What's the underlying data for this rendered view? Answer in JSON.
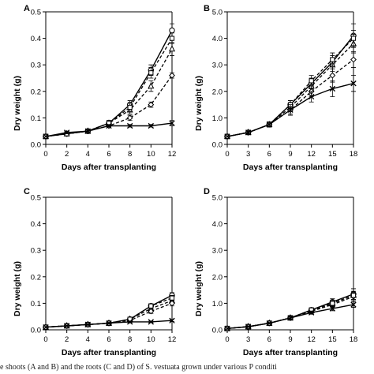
{
  "caption": "e shoots (A and B) and the roots (C and D) of S. vestuata grown under various P conditi",
  "chart_data": [
    {
      "panel": "A",
      "type": "line",
      "xlabel": "Days after transplanting",
      "ylabel": "Dry weight (g)",
      "xlim": [
        0,
        12
      ],
      "ylim": [
        0,
        0.5
      ],
      "xticks": [
        0,
        2,
        4,
        6,
        8,
        10,
        12
      ],
      "yticks": [
        0.0,
        0.1,
        0.2,
        0.3,
        0.4,
        0.5
      ],
      "ytick_labels": [
        "0.0",
        "0.1",
        "0.2",
        "0.3",
        "0.4",
        "0.5"
      ],
      "x": [
        0,
        2,
        4,
        6,
        8,
        10,
        12
      ],
      "series": [
        {
          "marker": "circle",
          "dash": "solid",
          "values": [
            0.03,
            0.04,
            0.05,
            0.08,
            0.15,
            0.28,
            0.43
          ],
          "err": [
            0,
            0.005,
            0.005,
            0.01,
            0.015,
            0.02,
            0.025
          ]
        },
        {
          "marker": "triangle",
          "dash": "dashed",
          "values": [
            0.03,
            0.04,
            0.05,
            0.08,
            0.13,
            0.22,
            0.36
          ],
          "err": [
            0,
            0.005,
            0.005,
            0.01,
            0.015,
            0.02,
            0.025
          ]
        },
        {
          "marker": "diamond",
          "dash": "dashed",
          "values": [
            0.03,
            0.04,
            0.05,
            0.07,
            0.1,
            0.15,
            0.26
          ],
          "err": [
            0,
            0.005,
            0.005,
            0.005,
            0.01,
            0.01,
            0.01
          ]
        },
        {
          "marker": "square",
          "dash": "dashed",
          "values": [
            0.03,
            0.04,
            0.05,
            0.08,
            0.14,
            0.27,
            0.4
          ],
          "err": [
            0,
            0.005,
            0.005,
            0.01,
            0.015,
            0.02,
            0.02
          ]
        },
        {
          "marker": "x",
          "dash": "solid",
          "values": [
            0.03,
            0.045,
            0.05,
            0.07,
            0.07,
            0.07,
            0.08
          ],
          "err": [
            0,
            0.005,
            0.005,
            0.005,
            0.005,
            0.005,
            0.01
          ]
        }
      ]
    },
    {
      "panel": "B",
      "type": "line",
      "xlabel": "Days after transplanting",
      "ylabel": "Dry weight (g)",
      "xlim": [
        0,
        18
      ],
      "ylim": [
        0,
        5.0
      ],
      "xticks": [
        0,
        3,
        6,
        9,
        12,
        15,
        18
      ],
      "yticks": [
        0.0,
        1.0,
        2.0,
        3.0,
        4.0,
        5.0
      ],
      "ytick_labels": [
        "0.0",
        "1.0",
        "2.0",
        "3.0",
        "4.0",
        "5.0"
      ],
      "x": [
        0,
        3,
        6,
        9,
        12,
        15,
        18
      ],
      "series": [
        {
          "marker": "circle",
          "dash": "solid",
          "values": [
            0.3,
            0.45,
            0.75,
            1.5,
            2.3,
            3.1,
            4.1
          ],
          "err": [
            0,
            0.05,
            0.1,
            0.15,
            0.2,
            0.25,
            0.45
          ]
        },
        {
          "marker": "triangle",
          "dash": "dashed",
          "values": [
            0.3,
            0.45,
            0.75,
            1.4,
            2.2,
            3.0,
            3.8
          ],
          "err": [
            0,
            0.05,
            0.1,
            0.15,
            0.2,
            0.25,
            0.35
          ]
        },
        {
          "marker": "diamond",
          "dash": "dashed",
          "values": [
            0.3,
            0.45,
            0.75,
            1.3,
            2.0,
            2.6,
            3.2
          ],
          "err": [
            0,
            0.05,
            0.1,
            0.15,
            0.2,
            0.25,
            0.3
          ]
        },
        {
          "marker": "square",
          "dash": "dashed",
          "values": [
            0.3,
            0.45,
            0.75,
            1.5,
            2.4,
            3.2,
            4.0
          ],
          "err": [
            0,
            0.05,
            0.1,
            0.15,
            0.2,
            0.25,
            0.3
          ]
        },
        {
          "marker": "x",
          "dash": "solid",
          "values": [
            0.3,
            0.45,
            0.75,
            1.3,
            1.8,
            2.1,
            2.3
          ],
          "err": [
            0,
            0.05,
            0.1,
            0.2,
            0.2,
            0.3,
            0.3
          ]
        }
      ]
    },
    {
      "panel": "C",
      "type": "line",
      "xlabel": "Days after transplanting",
      "ylabel": "Dry weight (g)",
      "xlim": [
        0,
        12
      ],
      "ylim": [
        0,
        0.5
      ],
      "xticks": [
        0,
        2,
        4,
        6,
        8,
        10,
        12
      ],
      "yticks": [
        0.0,
        0.1,
        0.2,
        0.3,
        0.4,
        0.5
      ],
      "ytick_labels": [
        "0.0",
        "0.1",
        "0.2",
        "0.3",
        "0.4",
        "0.5"
      ],
      "x": [
        0,
        2,
        4,
        6,
        8,
        10,
        12
      ],
      "series": [
        {
          "marker": "circle",
          "dash": "solid",
          "values": [
            0.01,
            0.015,
            0.02,
            0.025,
            0.04,
            0.09,
            0.13
          ],
          "err": [
            0,
            0,
            0.003,
            0.004,
            0.005,
            0.008,
            0.01
          ]
        },
        {
          "marker": "triangle",
          "dash": "dashed",
          "values": [
            0.01,
            0.015,
            0.02,
            0.025,
            0.04,
            0.08,
            0.11
          ],
          "err": [
            0,
            0,
            0.003,
            0.004,
            0.005,
            0.008,
            0.01
          ]
        },
        {
          "marker": "diamond",
          "dash": "dashed",
          "values": [
            0.01,
            0.015,
            0.02,
            0.025,
            0.035,
            0.07,
            0.1
          ],
          "err": [
            0,
            0,
            0.003,
            0.004,
            0.005,
            0.008,
            0.01
          ]
        },
        {
          "marker": "square",
          "dash": "dashed",
          "values": [
            0.01,
            0.015,
            0.02,
            0.025,
            0.04,
            0.09,
            0.12
          ],
          "err": [
            0,
            0,
            0.003,
            0.004,
            0.005,
            0.008,
            0.01
          ]
        },
        {
          "marker": "x",
          "dash": "solid",
          "values": [
            0.01,
            0.015,
            0.02,
            0.025,
            0.03,
            0.03,
            0.035
          ],
          "err": [
            0,
            0,
            0.002,
            0.003,
            0.003,
            0.003,
            0.004
          ]
        }
      ]
    },
    {
      "panel": "D",
      "type": "line",
      "xlabel": "Days after transplanting",
      "ylabel": "Dry weight (g)",
      "xlim": [
        0,
        18
      ],
      "ylim": [
        0,
        5.0
      ],
      "xticks": [
        0,
        3,
        6,
        9,
        12,
        15,
        18
      ],
      "yticks": [
        0.0,
        1.0,
        2.0,
        3.0,
        4.0,
        5.0
      ],
      "ytick_labels": [
        "0.0",
        "1.0",
        "2.0",
        "3.0",
        "4.0",
        "5.0"
      ],
      "x": [
        0,
        3,
        6,
        9,
        12,
        15,
        18
      ],
      "series": [
        {
          "marker": "circle",
          "dash": "solid",
          "values": [
            0.05,
            0.12,
            0.25,
            0.45,
            0.75,
            1.05,
            1.35
          ],
          "err": [
            0,
            0.02,
            0.03,
            0.05,
            0.08,
            0.12,
            0.2
          ]
        },
        {
          "marker": "triangle",
          "dash": "dashed",
          "values": [
            0.05,
            0.12,
            0.25,
            0.45,
            0.72,
            1.0,
            1.3
          ],
          "err": [
            0,
            0.02,
            0.03,
            0.05,
            0.08,
            0.1,
            0.15
          ]
        },
        {
          "marker": "diamond",
          "dash": "dashed",
          "values": [
            0.05,
            0.12,
            0.25,
            0.45,
            0.7,
            0.95,
            1.25
          ],
          "err": [
            0,
            0.02,
            0.03,
            0.05,
            0.08,
            0.1,
            0.15
          ]
        },
        {
          "marker": "square",
          "dash": "dashed",
          "values": [
            0.05,
            0.12,
            0.25,
            0.45,
            0.75,
            1.0,
            1.3
          ],
          "err": [
            0,
            0.02,
            0.03,
            0.05,
            0.08,
            0.1,
            0.15
          ]
        },
        {
          "marker": "x",
          "dash": "solid",
          "values": [
            0.05,
            0.12,
            0.25,
            0.45,
            0.65,
            0.8,
            0.95
          ],
          "err": [
            0,
            0.02,
            0.03,
            0.05,
            0.06,
            0.08,
            0.1
          ]
        }
      ]
    }
  ]
}
